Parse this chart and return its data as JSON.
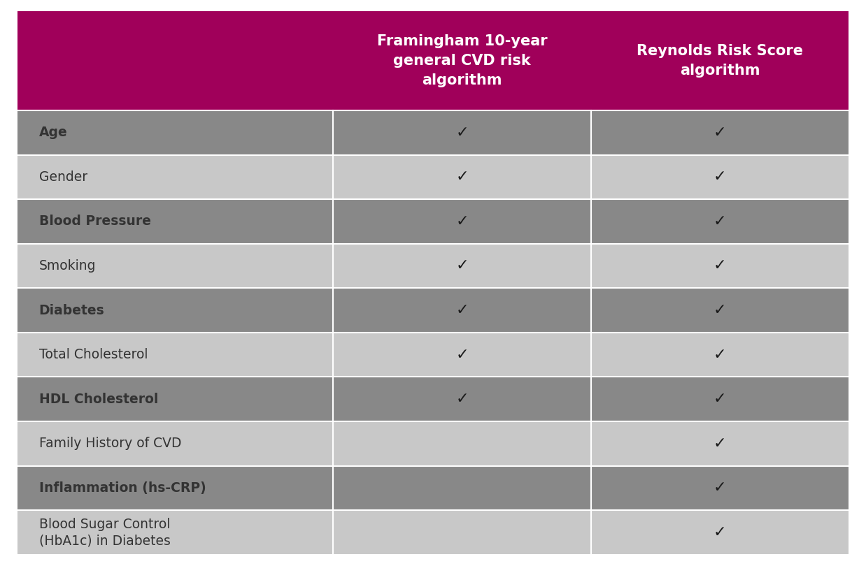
{
  "header_bg": "#A0005A",
  "header_text_color": "#FFFFFF",
  "col1_header": "Framingham 10-year\ngeneral CVD risk\nalgorithm",
  "col2_header": "Reynolds Risk Score\nalgorithm",
  "rows": [
    {
      "label": "Age",
      "bold": true,
      "col1": true,
      "col2": true
    },
    {
      "label": "Gender",
      "bold": false,
      "col1": true,
      "col2": true
    },
    {
      "label": "Blood Pressure",
      "bold": true,
      "col1": true,
      "col2": true
    },
    {
      "label": "Smoking",
      "bold": false,
      "col1": true,
      "col2": true
    },
    {
      "label": "Diabetes",
      "bold": true,
      "col1": true,
      "col2": true
    },
    {
      "label": "Total Cholesterol",
      "bold": false,
      "col1": true,
      "col2": true
    },
    {
      "label": "HDL Cholesterol",
      "bold": true,
      "col1": true,
      "col2": true
    },
    {
      "label": "Family History of CVD",
      "bold": false,
      "col1": false,
      "col2": true
    },
    {
      "label": "Inflammation (hs-CRP)",
      "bold": true,
      "col1": false,
      "col2": true
    },
    {
      "label": "Blood Sugar Control\n(HbA1c) in Diabetes",
      "bold": false,
      "col1": false,
      "col2": true
    }
  ],
  "row_bg_dark": "#888888",
  "row_bg_light": "#C8C8C8",
  "label_text_color": "#333333",
  "checkmark": "✓",
  "checkmark_color": "#1A1A1A",
  "figure_bg": "#FFFFFF"
}
